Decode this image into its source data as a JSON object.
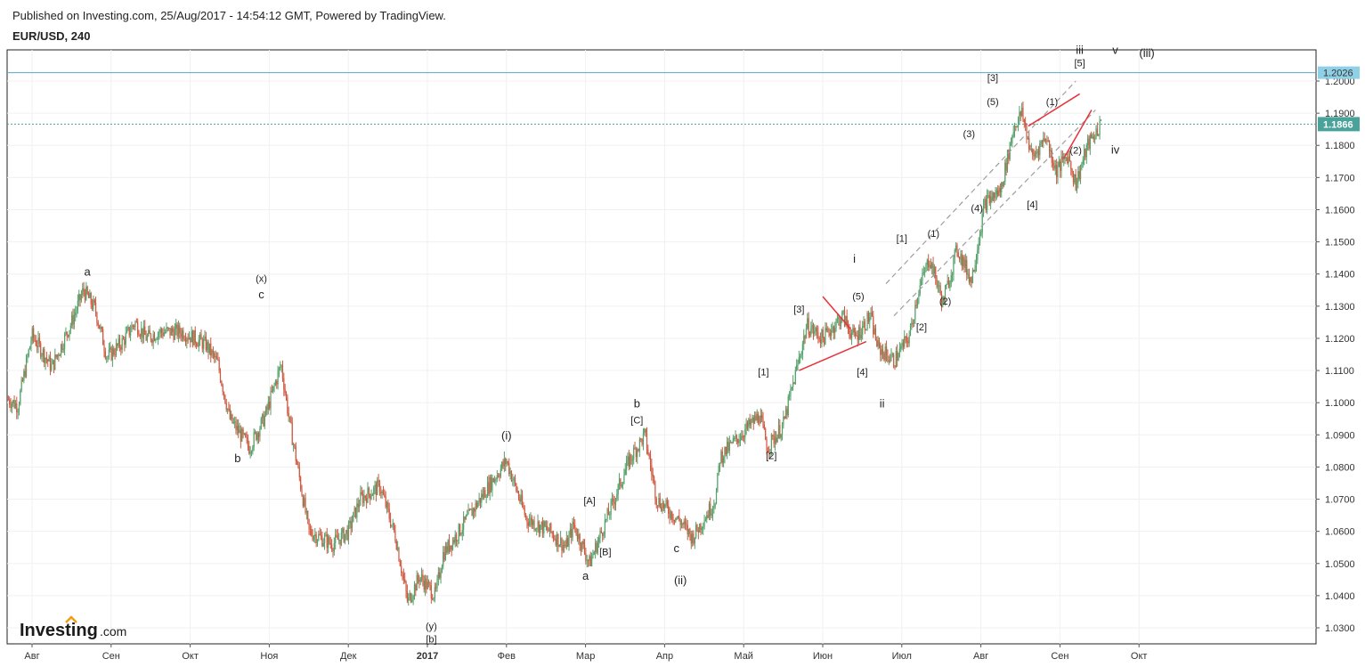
{
  "header": {
    "published": "Published on Investing.com, 25/Aug/2017 - 14:54:12 GMT, Powered by TradingView.",
    "symbol": "EUR/USD, 240"
  },
  "logo": {
    "brand": "Investing",
    "suffix": ".com"
  },
  "colors": {
    "up": "#53a06a",
    "down": "#d0573e",
    "trendline": "#e8323b",
    "channel": "#9e9e9e",
    "hline": "#5aa8c3",
    "last_price_bg": "#5aa8c3",
    "current_price_bg": "#4aa39a"
  },
  "chart_data": {
    "type": "candlestick",
    "symbol": "EUR/USD",
    "timeframe": "240",
    "ylim": [
      1.025,
      1.2045
    ],
    "y_ticks": [
      "1.0300",
      "1.0400",
      "1.0500",
      "1.0600",
      "1.0700",
      "1.0800",
      "1.0900",
      "1.1000",
      "1.1100",
      "1.1200",
      "1.1300",
      "1.1400",
      "1.1500",
      "1.1600",
      "1.1700",
      "1.1800",
      "1.1900",
      "1.2000"
    ],
    "x_ticks": [
      {
        "label": "Авг",
        "t": 0.3
      },
      {
        "label": "Сен",
        "t": 1.3
      },
      {
        "label": "Окт",
        "t": 2.3
      },
      {
        "label": "Ноя",
        "t": 3.3
      },
      {
        "label": "Дек",
        "t": 4.3
      },
      {
        "label": "2017",
        "t": 5.3,
        "bold": true
      },
      {
        "label": "Фев",
        "t": 6.3
      },
      {
        "label": "Мар",
        "t": 7.3
      },
      {
        "label": "Апр",
        "t": 8.3
      },
      {
        "label": "Май",
        "t": 9.3
      },
      {
        "label": "Июн",
        "t": 10.3
      },
      {
        "label": "Июл",
        "t": 11.3
      },
      {
        "label": "Авг",
        "t": 12.3
      },
      {
        "label": "Сен",
        "t": 13.3
      },
      {
        "label": "Окт",
        "t": 14.3
      }
    ],
    "price_path": [
      [
        0.0,
        1.101
      ],
      [
        0.12,
        1.099
      ],
      [
        0.3,
        1.121
      ],
      [
        0.55,
        1.111
      ],
      [
        0.8,
        1.125
      ],
      [
        0.95,
        1.135
      ],
      [
        1.1,
        1.129
      ],
      [
        1.25,
        1.114
      ],
      [
        1.45,
        1.119
      ],
      [
        1.6,
        1.125
      ],
      [
        1.75,
        1.12
      ],
      [
        1.9,
        1.122
      ],
      [
        2.2,
        1.122
      ],
      [
        2.5,
        1.118
      ],
      [
        2.65,
        1.112
      ],
      [
        2.8,
        1.095
      ],
      [
        3.05,
        1.086
      ],
      [
        3.25,
        1.096
      ],
      [
        3.45,
        1.112
      ],
      [
        3.55,
        1.095
      ],
      [
        3.8,
        1.06
      ],
      [
        4.1,
        1.056
      ],
      [
        4.3,
        1.06
      ],
      [
        4.45,
        1.07
      ],
      [
        4.7,
        1.074
      ],
      [
        4.9,
        1.058
      ],
      [
        5.05,
        1.038
      ],
      [
        5.2,
        1.046
      ],
      [
        5.4,
        1.04
      ],
      [
        5.5,
        1.053
      ],
      [
        5.7,
        1.06
      ],
      [
        6.1,
        1.075
      ],
      [
        6.3,
        1.082
      ],
      [
        6.55,
        1.064
      ],
      [
        6.85,
        1.06
      ],
      [
        7.05,
        1.055
      ],
      [
        7.15,
        1.062
      ],
      [
        7.35,
        1.05
      ],
      [
        7.6,
        1.066
      ],
      [
        7.85,
        1.082
      ],
      [
        8.05,
        1.09
      ],
      [
        8.2,
        1.07
      ],
      [
        8.5,
        1.063
      ],
      [
        8.65,
        1.058
      ],
      [
        8.9,
        1.068
      ],
      [
        8.95,
        1.071
      ],
      [
        9.0,
        1.083
      ],
      [
        9.3,
        1.091
      ],
      [
        9.5,
        1.096
      ],
      [
        9.6,
        1.086
      ],
      [
        9.8,
        1.093
      ],
      [
        10.1,
        1.124
      ],
      [
        10.3,
        1.12
      ],
      [
        10.55,
        1.127
      ],
      [
        10.7,
        1.12
      ],
      [
        10.9,
        1.127
      ],
      [
        11.0,
        1.117
      ],
      [
        11.2,
        1.113
      ],
      [
        11.4,
        1.121
      ],
      [
        11.5,
        1.134
      ],
      [
        11.65,
        1.145
      ],
      [
        11.82,
        1.131
      ],
      [
        12.0,
        1.148
      ],
      [
        12.18,
        1.138
      ],
      [
        12.35,
        1.162
      ],
      [
        12.55,
        1.166
      ],
      [
        12.72,
        1.186
      ],
      [
        12.82,
        1.19
      ],
      [
        12.95,
        1.176
      ],
      [
        13.12,
        1.183
      ],
      [
        13.25,
        1.172
      ],
      [
        13.4,
        1.177
      ],
      [
        13.5,
        1.168
      ],
      [
        13.65,
        1.18
      ],
      [
        13.82,
        1.1866
      ]
    ],
    "last_bar_price": 1.1866,
    "horizontal_levels": [
      1.2026,
      1.1866
    ],
    "labels": {
      "top_level": "1.2026",
      "current_price": "1.1866"
    },
    "annotations": [
      {
        "text": "a",
        "t": 1.0,
        "y": 1.1395,
        "big": true
      },
      {
        "text": "(x)",
        "t": 3.2,
        "y": 1.1375
      },
      {
        "text": "c",
        "t": 3.2,
        "y": 1.1325,
        "big": true
      },
      {
        "text": "b",
        "t": 2.9,
        "y": 1.0815,
        "big": true
      },
      {
        "text": "(y)",
        "t": 5.35,
        "y": 1.0295
      },
      {
        "text": "[b]",
        "t": 5.35,
        "y": 1.0255
      },
      {
        "text": "(i)",
        "t": 6.3,
        "y": 1.0885,
        "big": true
      },
      {
        "text": "b",
        "t": 7.95,
        "y": 1.0985,
        "big": true
      },
      {
        "text": "[C]",
        "t": 7.95,
        "y": 1.0935
      },
      {
        "text": "[A]",
        "t": 7.35,
        "y": 1.0685
      },
      {
        "text": "[B]",
        "t": 7.55,
        "y": 1.0525
      },
      {
        "text": "a",
        "t": 7.3,
        "y": 1.045,
        "big": true
      },
      {
        "text": "c",
        "t": 8.45,
        "y": 1.0535,
        "big": true
      },
      {
        "text": "(ii)",
        "t": 8.5,
        "y": 1.0435,
        "big": true
      },
      {
        "text": "[1]",
        "t": 9.55,
        "y": 1.1085
      },
      {
        "text": "[2]",
        "t": 9.65,
        "y": 1.0825
      },
      {
        "text": "[3]",
        "t": 10.0,
        "y": 1.128
      },
      {
        "text": "(5)",
        "t": 10.75,
        "y": 1.132
      },
      {
        "text": "i",
        "t": 10.7,
        "y": 1.1435,
        "big": true
      },
      {
        "text": "[4]",
        "t": 10.8,
        "y": 1.1085
      },
      {
        "text": "ii",
        "t": 11.05,
        "y": 1.0985,
        "big": true
      },
      {
        "text": "[1]",
        "t": 11.3,
        "y": 1.15
      },
      {
        "text": "[2]",
        "t": 11.55,
        "y": 1.1225
      },
      {
        "text": "(1)",
        "t": 11.7,
        "y": 1.1515
      },
      {
        "text": "(2)",
        "t": 11.85,
        "y": 1.1305
      },
      {
        "text": "(3)",
        "t": 12.15,
        "y": 1.1825
      },
      {
        "text": "(4)",
        "t": 12.25,
        "y": 1.1595
      },
      {
        "text": "[3]",
        "t": 12.45,
        "y": 1.2
      },
      {
        "text": "(5)",
        "t": 12.45,
        "y": 1.1925
      },
      {
        "text": "[4]",
        "t": 12.95,
        "y": 1.1605
      },
      {
        "text": "(1)",
        "t": 13.2,
        "y": 1.1925
      },
      {
        "text": "(2)",
        "t": 13.5,
        "y": 1.1775
      },
      {
        "text": "[5]",
        "t": 13.55,
        "y": 1.2045
      },
      {
        "text": "iii",
        "t": 13.55,
        "y": 1.2085,
        "big": true
      },
      {
        "text": "v",
        "t": 14.0,
        "y": 1.2085,
        "big": true
      },
      {
        "text": "(iii)",
        "t": 14.4,
        "y": 1.2075,
        "big": true
      },
      {
        "text": "iv",
        "t": 14.0,
        "y": 1.1775,
        "big": true
      }
    ],
    "red_lines": [
      [
        [
          10.0,
          1.11
        ],
        [
          10.85,
          1.119
        ]
      ],
      [
        [
          10.3,
          1.133
        ],
        [
          10.65,
          1.123
        ]
      ],
      [
        [
          12.9,
          1.186
        ],
        [
          13.55,
          1.196
        ]
      ],
      [
        [
          13.35,
          1.176
        ],
        [
          13.7,
          1.191
        ]
      ]
    ],
    "channel_lines": [
      [
        [
          11.1,
          1.137
        ],
        [
          13.5,
          1.2
        ]
      ],
      [
        [
          11.2,
          1.127
        ],
        [
          13.75,
          1.191
        ]
      ]
    ]
  }
}
